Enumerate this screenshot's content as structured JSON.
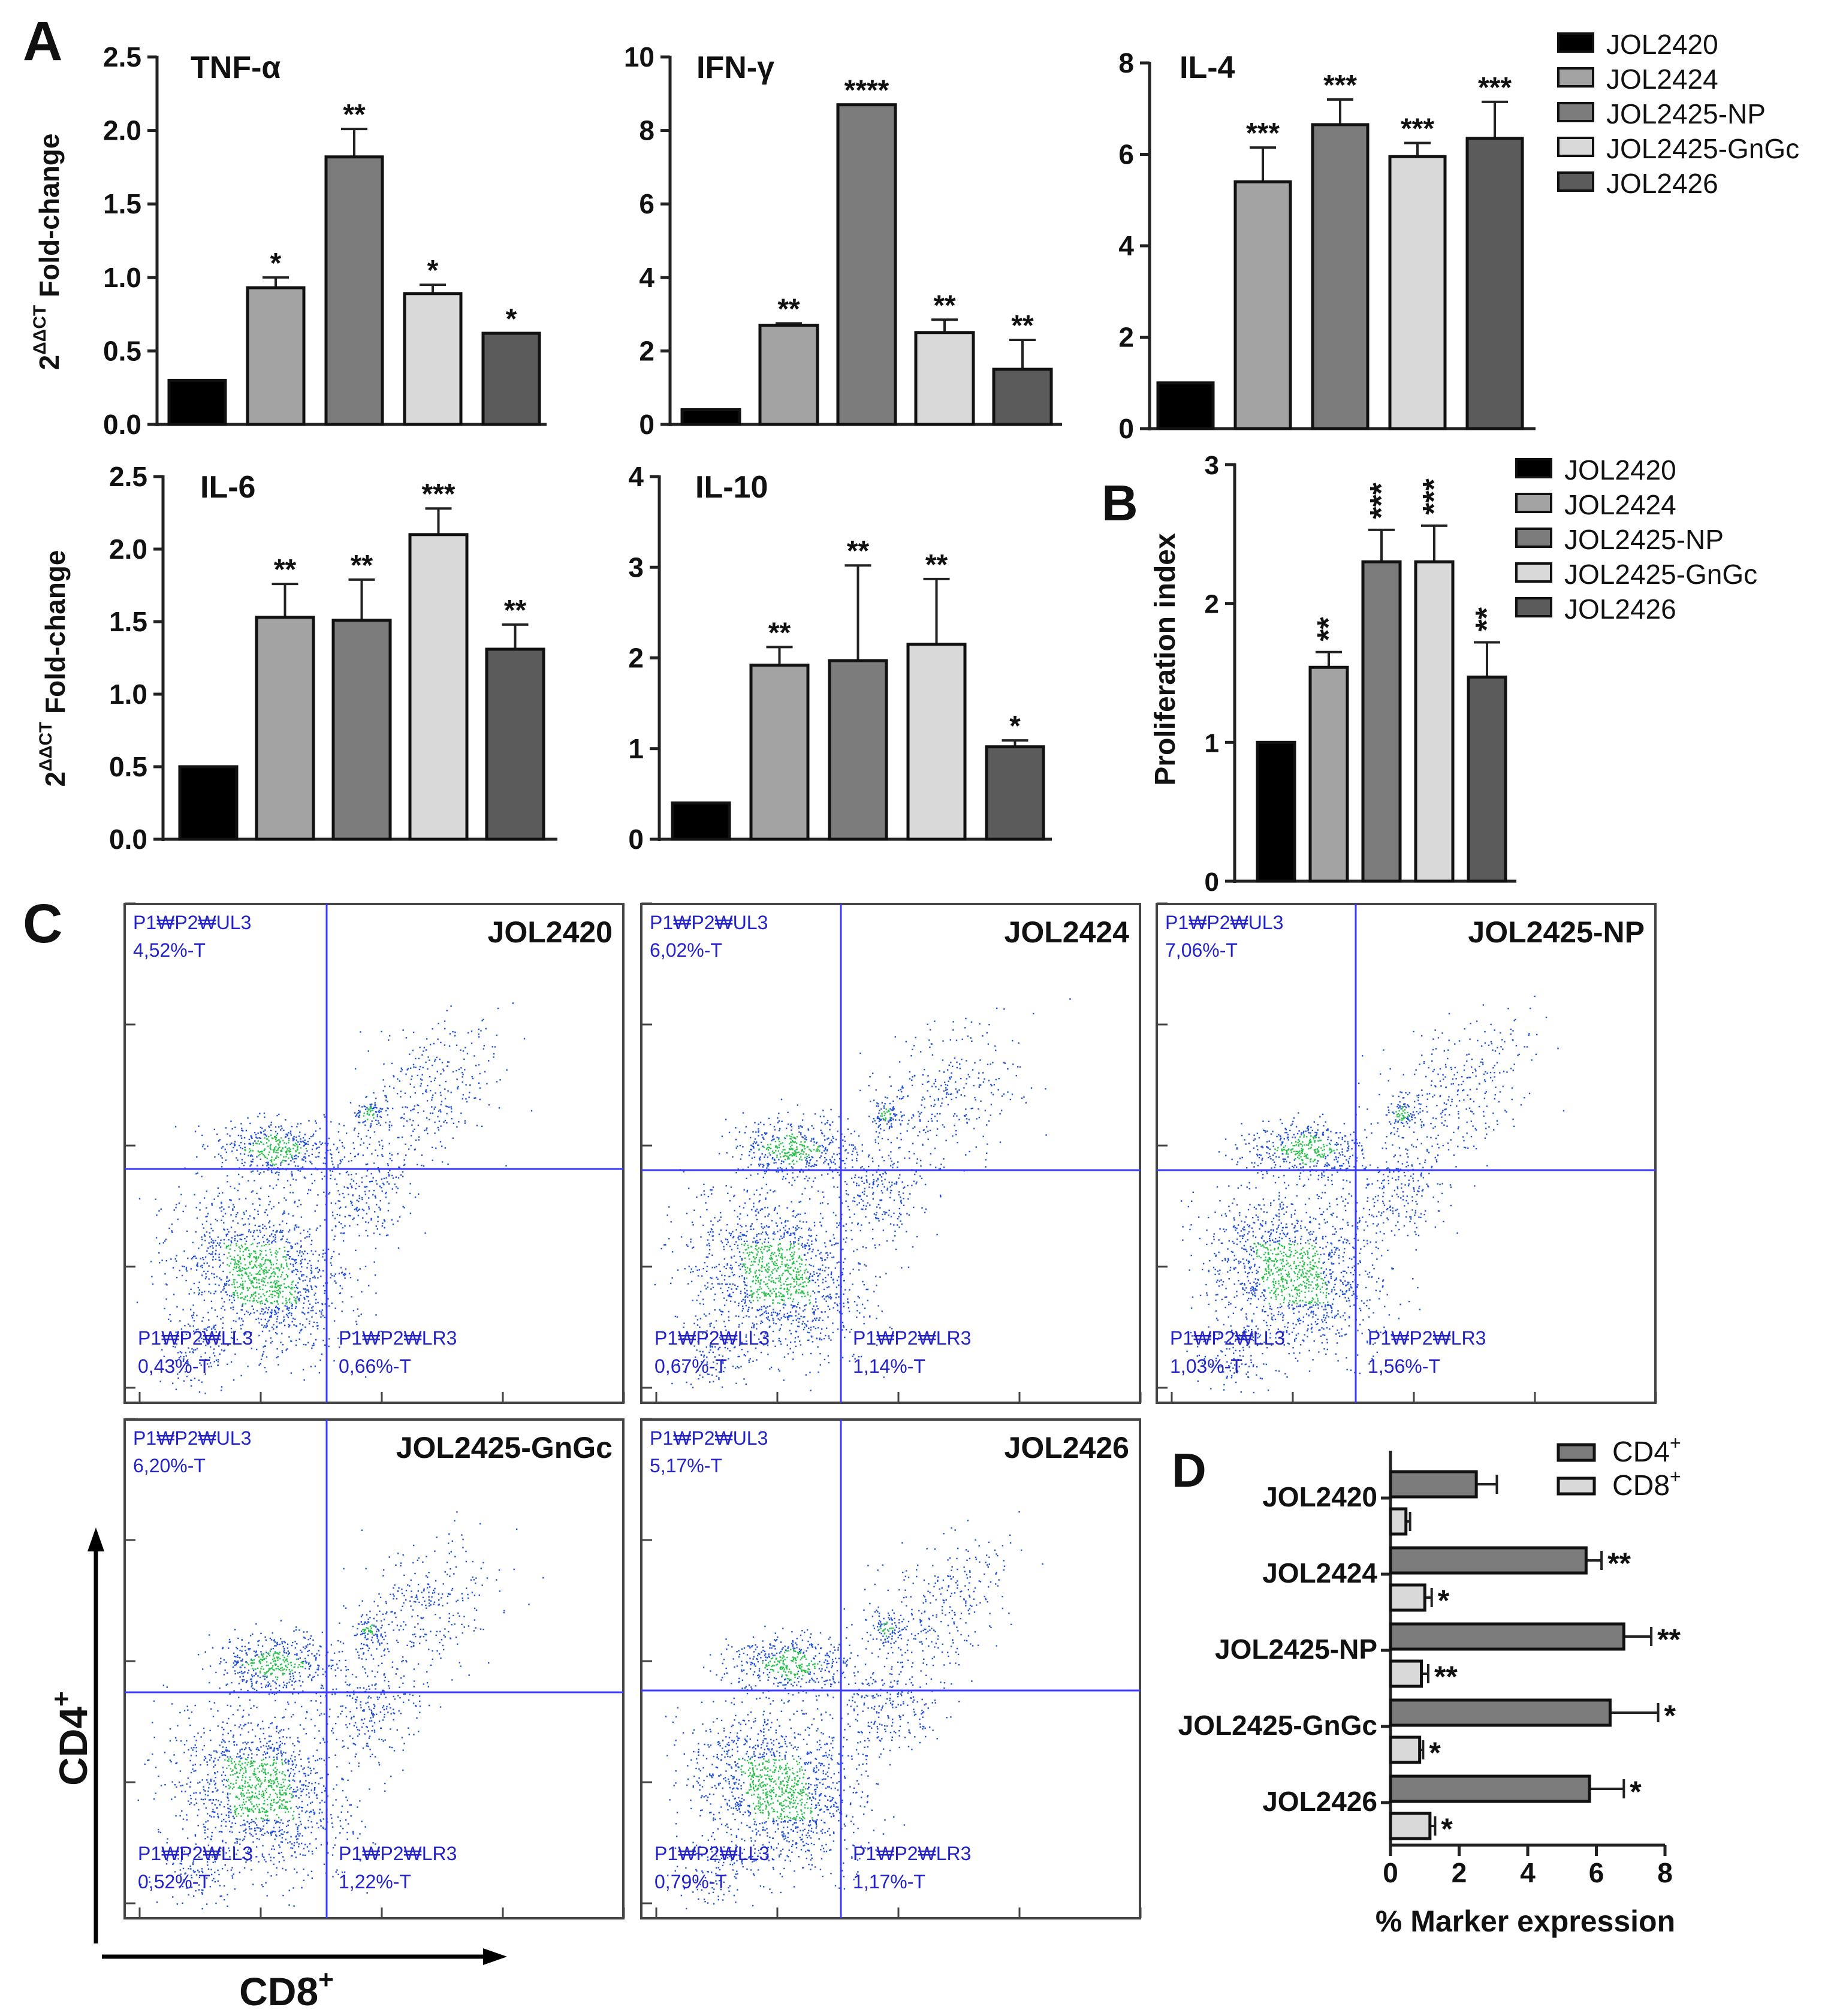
{
  "figure_title": "Cytokine expression, lymphocyte proliferation and flow cytometry panels",
  "colors": {
    "JOL2420": "#000000",
    "JOL2424": "#a3a3a3",
    "JOL2425-NP": "#7c7c7c",
    "JOL2425-GnGc": "#d9d9d9",
    "JOL2426": "#5b5b5b",
    "CD4+": "#7c7c7c",
    "CD8+": "#d9d9d9",
    "flow_text": "#2323c8",
    "gate_line": "#3a3aff"
  },
  "legend": {
    "items": [
      "JOL2420",
      "JOL2424",
      "JOL2425-NP",
      "JOL2425-GnGc",
      "JOL2426"
    ]
  },
  "labels": {
    "panel_a": "A",
    "panel_b": "B",
    "panel_c": "C",
    "panel_d": "D",
    "ylabel_fold_main": "2",
    "ylabel_fold_sup": "ΔΔCT",
    "ylabel_fold_rest": " Fold-change",
    "ylabel_prolif": "Proliferation index",
    "cd4_axis": "CD4",
    "cd8_axis": "CD8",
    "plus": "+",
    "xlabel_d": "% Marker expression"
  },
  "chart_data": [
    {
      "id": "tnf",
      "type": "bar",
      "title": "TNF-α",
      "ylabel": "2ΔΔCT Fold-change",
      "categories": [
        "JOL2420",
        "JOL2424",
        "JOL2425-NP",
        "JOL2425-GnGc",
        "JOL2426"
      ],
      "values": [
        0.3,
        0.93,
        1.82,
        0.89,
        0.62
      ],
      "errors": [
        0,
        0.07,
        0.19,
        0.06,
        0
      ],
      "significance": [
        "",
        "*",
        "**",
        "*",
        "*"
      ],
      "ylim": [
        0,
        2.5
      ],
      "yticks": [
        "0.0",
        "0.5",
        "1.0",
        "1.5",
        "2.0",
        "2.5"
      ]
    },
    {
      "id": "ifn",
      "type": "bar",
      "title": "IFN-γ",
      "ylabel": "",
      "categories": [
        "JOL2420",
        "JOL2424",
        "JOL2425-NP",
        "JOL2425-GnGc",
        "JOL2426"
      ],
      "values": [
        0.4,
        2.7,
        8.7,
        2.5,
        1.5
      ],
      "errors": [
        0,
        0.05,
        0,
        0.35,
        0.8
      ],
      "significance": [
        "",
        "**",
        "****",
        "**",
        "**"
      ],
      "ylim": [
        0,
        10
      ],
      "yticks": [
        "0",
        "2",
        "4",
        "6",
        "8",
        "10"
      ]
    },
    {
      "id": "il4",
      "type": "bar",
      "title": "IL-4",
      "ylabel": "",
      "categories": [
        "JOL2420",
        "JOL2424",
        "JOL2425-NP",
        "JOL2425-GnGc",
        "JOL2426"
      ],
      "values": [
        1.0,
        5.4,
        6.65,
        5.95,
        6.35
      ],
      "errors": [
        0,
        0.75,
        0.55,
        0.3,
        0.8
      ],
      "significance": [
        "",
        "***",
        "***",
        "***",
        "***"
      ],
      "ylim": [
        0,
        8
      ],
      "yticks": [
        "0",
        "2",
        "4",
        "6",
        "8"
      ]
    },
    {
      "id": "il6",
      "type": "bar",
      "title": "IL-6",
      "ylabel": "2ΔΔCT Fold-change",
      "categories": [
        "JOL2420",
        "JOL2424",
        "JOL2425-NP",
        "JOL2425-GnGc",
        "JOL2426"
      ],
      "values": [
        0.5,
        1.53,
        1.51,
        2.1,
        1.31
      ],
      "errors": [
        0,
        0.23,
        0.28,
        0.18,
        0.17
      ],
      "significance": [
        "",
        "**",
        "**",
        "***",
        "**"
      ],
      "ylim": [
        0,
        2.5
      ],
      "yticks": [
        "0.0",
        "0.5",
        "1.0",
        "1.5",
        "2.0",
        "2.5"
      ]
    },
    {
      "id": "il10",
      "type": "bar",
      "title": "IL-10",
      "ylabel": "",
      "categories": [
        "JOL2420",
        "JOL2424",
        "JOL2425-NP",
        "JOL2425-GnGc",
        "JOL2426"
      ],
      "values": [
        0.4,
        1.92,
        1.97,
        2.15,
        1.02
      ],
      "errors": [
        0,
        0.2,
        1.05,
        0.72,
        0.07
      ],
      "significance": [
        "",
        "**",
        "**",
        "**",
        "*"
      ],
      "ylim": [
        0,
        4
      ],
      "yticks": [
        "0",
        "1",
        "2",
        "3",
        "4"
      ]
    },
    {
      "id": "prolif",
      "type": "bar",
      "title": "",
      "ylabel": "Proliferation index",
      "categories": [
        "JOL2420",
        "JOL2424",
        "JOL2425-NP",
        "JOL2425-GnGc",
        "JOL2426"
      ],
      "values": [
        1.0,
        1.54,
        2.3,
        2.3,
        1.47
      ],
      "errors": [
        0,
        0.11,
        0.23,
        0.26,
        0.25
      ],
      "significance": [
        "",
        "**",
        "***",
        "***",
        "**"
      ],
      "ylim": [
        0,
        3
      ],
      "yticks": [
        "0",
        "1",
        "2",
        "3"
      ]
    },
    {
      "id": "markers",
      "type": "bar",
      "orientation": "horizontal",
      "title": "",
      "xlabel": "% Marker expression",
      "categories": [
        "JOL2420",
        "JOL2424",
        "JOL2425-NP",
        "JOL2425-GnGc",
        "JOL2426"
      ],
      "series": [
        {
          "name": "CD4+",
          "values": [
            2.5,
            5.7,
            6.8,
            6.4,
            5.8
          ],
          "errors": [
            0.6,
            0.45,
            0.8,
            1.4,
            1.0
          ],
          "significance": [
            "",
            "**",
            "**",
            "*",
            "*"
          ]
        },
        {
          "name": "CD8+",
          "values": [
            0.45,
            1.0,
            0.9,
            0.85,
            1.15
          ],
          "errors": [
            0.12,
            0.2,
            0.2,
            0.1,
            0.15
          ],
          "significance": [
            "",
            "*",
            "**",
            "*",
            "*"
          ]
        }
      ],
      "xlim": [
        0,
        8
      ],
      "xticks": [
        "0",
        "2",
        "4",
        "6",
        "8"
      ]
    }
  ],
  "flow_panels": [
    {
      "title": "JOL2420",
      "ul_gate": "P1₩P2₩UL3",
      "ul_value": "4,52%-T",
      "ll_gate": "P1₩P2₩LL3",
      "ll_value": "0,43%-T",
      "lr_gate": "P1₩P2₩LR3",
      "lr_value": "0,66%-T"
    },
    {
      "title": "JOL2424",
      "ul_gate": "P1₩P2₩UL3",
      "ul_value": "6,02%-T",
      "ll_gate": "P1₩P2₩LL3",
      "ll_value": "0,67%-T",
      "lr_gate": "P1₩P2₩LR3",
      "lr_value": "1,14%-T"
    },
    {
      "title": "JOL2425-NP",
      "ul_gate": "P1₩P2₩UL3",
      "ul_value": "7,06%-T",
      "ll_gate": "P1₩P2₩LL3",
      "ll_value": "1,03%-T",
      "lr_gate": "P1₩P2₩LR3",
      "lr_value": "1,56%-T"
    },
    {
      "title": "JOL2425-GnGc",
      "ul_gate": "P1₩P2₩UL3",
      "ul_value": "6,20%-T",
      "ll_gate": "P1₩P2₩LL3",
      "ll_value": "0,52%-T",
      "lr_gate": "P1₩P2₩LR3",
      "lr_value": "1,22%-T"
    },
    {
      "title": "JOL2426",
      "ul_gate": "P1₩P2₩UL3",
      "ul_value": "5,17%-T",
      "ll_gate": "P1₩P2₩LL3",
      "ll_value": "0,79%-T",
      "lr_gate": "P1₩P2₩LR3",
      "lr_value": "1,17%-T"
    }
  ]
}
